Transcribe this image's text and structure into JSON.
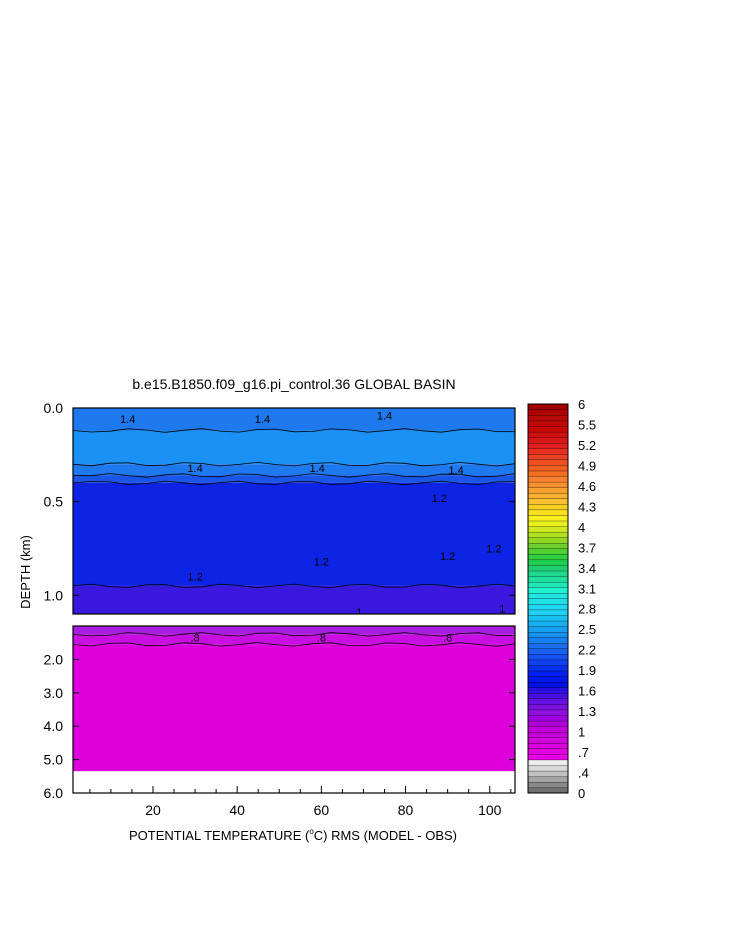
{
  "chart_data": {
    "type": "heatmap",
    "title": "b.e15.B1850.f09_g16.pi_control.36 GLOBAL BASIN",
    "xlabel_prefix": "POTENTIAL TEMPERATURE (",
    "xlabel_unit": "o",
    "xlabel_suffix": "C) RMS (MODEL - OBS)",
    "ylabel": "DEPTH (km)",
    "x_range": [
      1,
      106
    ],
    "x_ticks": [
      {
        "value": 20,
        "label": "20"
      },
      {
        "value": 40,
        "label": "40"
      },
      {
        "value": 60,
        "label": "60"
      },
      {
        "value": 80,
        "label": "80"
      },
      {
        "value": 100,
        "label": "100"
      }
    ],
    "upper_panel": {
      "depth_range_km": [
        0.0,
        1.1
      ],
      "y_ticks": [
        {
          "value": 0.0,
          "label": "0.0"
        },
        {
          "value": 0.5,
          "label": "0.5"
        },
        {
          "value": 1.0,
          "label": "1.0"
        }
      ],
      "bands": [
        {
          "top": 0.0,
          "bottom": 0.12,
          "value": 1.45,
          "color": "#1e78ee"
        },
        {
          "top": 0.12,
          "bottom": 0.3,
          "value": 1.5,
          "color": "#1a92f5"
        },
        {
          "top": 0.3,
          "bottom": 0.36,
          "value": 1.45,
          "color": "#1e78ee"
        },
        {
          "top": 0.36,
          "bottom": 0.4,
          "value": 1.4,
          "color": "#1a56e8"
        },
        {
          "top": 0.4,
          "bottom": 0.95,
          "value": 1.3,
          "color": "#0d24e6"
        },
        {
          "top": 0.95,
          "bottom": 1.1,
          "value": 1.15,
          "color": "#3a18e0"
        }
      ],
      "contour_labels": [
        {
          "x": 14,
          "depth": 0.06,
          "label": "1.4"
        },
        {
          "x": 46,
          "depth": 0.06,
          "label": "1.4"
        },
        {
          "x": 75,
          "depth": 0.04,
          "label": "1.4"
        },
        {
          "x": 30,
          "depth": 0.32,
          "label": "1.4"
        },
        {
          "x": 59,
          "depth": 0.32,
          "label": "1.4"
        },
        {
          "x": 92,
          "depth": 0.33,
          "label": "1.4"
        },
        {
          "x": 88,
          "depth": 0.48,
          "label": "1.2"
        },
        {
          "x": 90,
          "depth": 0.79,
          "label": "1.2"
        },
        {
          "x": 101,
          "depth": 0.75,
          "label": "1.2"
        },
        {
          "x": 30,
          "depth": 0.9,
          "label": "1.2"
        },
        {
          "x": 60,
          "depth": 0.82,
          "label": "1.2"
        },
        {
          "x": 103,
          "depth": 1.07,
          "label": "1"
        },
        {
          "x": 69,
          "depth": 1.09,
          "label": "1"
        }
      ]
    },
    "lower_panel": {
      "depth_range_km": [
        1.0,
        6.0
      ],
      "y_ticks": [
        {
          "value": 2.0,
          "label": "2.0"
        },
        {
          "value": 3.0,
          "label": "3.0"
        },
        {
          "value": 4.0,
          "label": "4.0"
        },
        {
          "value": 5.0,
          "label": "5.0"
        },
        {
          "value": 6.0,
          "label": "6.0"
        }
      ],
      "bands": [
        {
          "top": 1.0,
          "bottom": 1.25,
          "value": 0.85,
          "color": "#a81ee0"
        },
        {
          "top": 1.25,
          "bottom": 1.55,
          "value": 0.8,
          "color": "#c80ee0"
        },
        {
          "top": 1.55,
          "bottom": 5.35,
          "value": 0.75,
          "color": "#dd00dd"
        }
      ],
      "missing_below_km": 5.35,
      "contour_labels": [
        {
          "x": 30,
          "depth": 1.35,
          "label": ".8"
        },
        {
          "x": 60,
          "depth": 1.35,
          "label": ".8"
        },
        {
          "x": 90,
          "depth": 1.35,
          "label": ".8"
        }
      ]
    },
    "colorbar": {
      "range": [
        0,
        6
      ],
      "labels": [
        "6",
        "5.5",
        "5.2",
        "4.9",
        "4.6",
        "4.3",
        "4",
        "3.7",
        "3.4",
        "3.1",
        "2.8",
        "2.5",
        "2.2",
        "1.9",
        "1.6",
        "1.3",
        "1",
        ".7",
        ".4",
        "0"
      ],
      "colors": [
        "#707070",
        "#8a8a8a",
        "#a4a4a4",
        "#c0c0c0",
        "#d8d8d8",
        "#eeeeee",
        "#e800e8",
        "#e000e0",
        "#d800dc",
        "#d000d8",
        "#c800d8",
        "#c000d8",
        "#b000d8",
        "#a000dc",
        "#9010e0",
        "#7a10e0",
        "#6510e0",
        "#4810e0",
        "#2a10e0",
        "#0010e0",
        "#0018e8",
        "#0020f0",
        "#0830f0",
        "#1040f0",
        "#1850f0",
        "#1860f0",
        "#1870f0",
        "#1880f0",
        "#1890f0",
        "#18a0f0",
        "#18b0f0",
        "#18c0f0",
        "#20d0f0",
        "#20d8f0",
        "#20e0e8",
        "#20e8e0",
        "#20f0d0",
        "#20e8b8",
        "#20e0a0",
        "#20d890",
        "#20d070",
        "#20d050",
        "#30d040",
        "#50d030",
        "#70d030",
        "#90d820",
        "#b0e020",
        "#d0e820",
        "#e8f020",
        "#f8f020",
        "#f8e020",
        "#f8d020",
        "#f8c030",
        "#f8b030",
        "#f8a030",
        "#f89030",
        "#f88030",
        "#f07020",
        "#f06020",
        "#f05020",
        "#e84020",
        "#e83020",
        "#e02020",
        "#d81818",
        "#d01010",
        "#c80808",
        "#c00808",
        "#b80808",
        "#b00000",
        "#a00000"
      ]
    }
  }
}
